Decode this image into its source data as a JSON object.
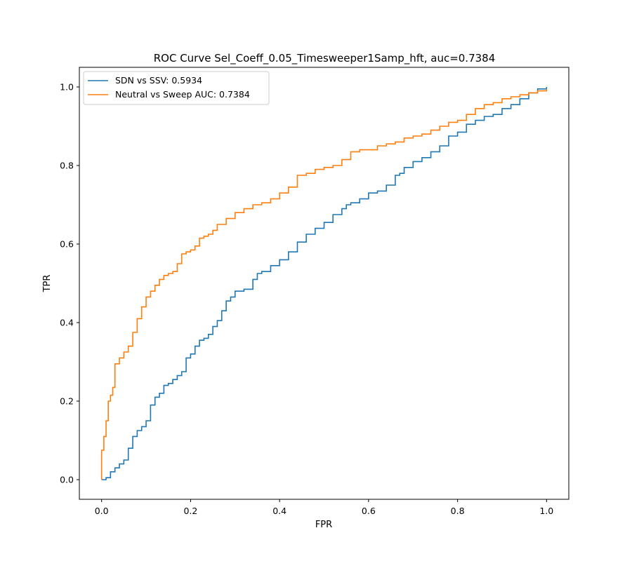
{
  "chart_data": {
    "type": "line",
    "title": "ROC Curve Sel_Coeff_0.05_Timesweeper1Samp_hft, auc=0.7384",
    "xlabel": "FPR",
    "ylabel": "TPR",
    "xlim": [
      -0.05,
      1.05
    ],
    "ylim": [
      -0.05,
      1.05
    ],
    "xticks": [
      0.0,
      0.2,
      0.4,
      0.6,
      0.8,
      1.0
    ],
    "yticks": [
      0.0,
      0.2,
      0.4,
      0.6,
      0.8,
      1.0
    ],
    "xtick_labels": [
      "0.0",
      "0.2",
      "0.4",
      "0.6",
      "0.8",
      "1.0"
    ],
    "ytick_labels": [
      "0.0",
      "0.2",
      "0.4",
      "0.6",
      "0.8",
      "1.0"
    ],
    "grid": false,
    "legend_position": "top-left",
    "series": [
      {
        "name": "SDN vs SSV: 0.5934",
        "color": "#1f77b4",
        "x": [
          0.0,
          0.01,
          0.02,
          0.03,
          0.04,
          0.05,
          0.06,
          0.07,
          0.08,
          0.09,
          0.1,
          0.11,
          0.12,
          0.13,
          0.14,
          0.15,
          0.16,
          0.17,
          0.18,
          0.19,
          0.2,
          0.21,
          0.22,
          0.23,
          0.24,
          0.25,
          0.26,
          0.27,
          0.28,
          0.29,
          0.3,
          0.32,
          0.34,
          0.35,
          0.36,
          0.38,
          0.4,
          0.42,
          0.44,
          0.46,
          0.48,
          0.5,
          0.52,
          0.54,
          0.55,
          0.56,
          0.58,
          0.6,
          0.62,
          0.64,
          0.66,
          0.67,
          0.68,
          0.7,
          0.72,
          0.74,
          0.76,
          0.78,
          0.8,
          0.82,
          0.84,
          0.86,
          0.88,
          0.9,
          0.92,
          0.94,
          0.96,
          0.98,
          1.0
        ],
        "y": [
          0.0,
          0.005,
          0.02,
          0.03,
          0.04,
          0.05,
          0.08,
          0.11,
          0.125,
          0.135,
          0.15,
          0.19,
          0.21,
          0.22,
          0.24,
          0.245,
          0.255,
          0.265,
          0.275,
          0.31,
          0.32,
          0.34,
          0.355,
          0.36,
          0.37,
          0.39,
          0.405,
          0.43,
          0.455,
          0.465,
          0.48,
          0.485,
          0.51,
          0.525,
          0.53,
          0.545,
          0.56,
          0.58,
          0.605,
          0.625,
          0.64,
          0.655,
          0.675,
          0.69,
          0.7,
          0.705,
          0.715,
          0.73,
          0.735,
          0.75,
          0.775,
          0.78,
          0.795,
          0.81,
          0.82,
          0.835,
          0.85,
          0.875,
          0.885,
          0.905,
          0.915,
          0.925,
          0.93,
          0.945,
          0.955,
          0.97,
          0.985,
          0.995,
          1.0
        ]
      },
      {
        "name": "Neutral vs Sweep AUC: 0.7384",
        "color": "#ff7f0e",
        "x": [
          0.0,
          0.0,
          0.005,
          0.01,
          0.015,
          0.02,
          0.025,
          0.03,
          0.04,
          0.05,
          0.06,
          0.07,
          0.08,
          0.09,
          0.1,
          0.11,
          0.12,
          0.13,
          0.14,
          0.15,
          0.16,
          0.17,
          0.18,
          0.19,
          0.2,
          0.21,
          0.22,
          0.23,
          0.24,
          0.25,
          0.26,
          0.28,
          0.3,
          0.32,
          0.34,
          0.36,
          0.38,
          0.4,
          0.42,
          0.44,
          0.46,
          0.48,
          0.5,
          0.52,
          0.54,
          0.56,
          0.58,
          0.6,
          0.62,
          0.64,
          0.66,
          0.68,
          0.7,
          0.72,
          0.74,
          0.76,
          0.78,
          0.8,
          0.82,
          0.84,
          0.86,
          0.88,
          0.9,
          0.92,
          0.94,
          0.96,
          0.98,
          1.0
        ],
        "y": [
          0.0,
          0.075,
          0.11,
          0.15,
          0.2,
          0.215,
          0.235,
          0.295,
          0.31,
          0.325,
          0.34,
          0.375,
          0.41,
          0.44,
          0.465,
          0.48,
          0.495,
          0.51,
          0.52,
          0.525,
          0.53,
          0.55,
          0.575,
          0.58,
          0.585,
          0.595,
          0.615,
          0.62,
          0.625,
          0.635,
          0.65,
          0.665,
          0.68,
          0.69,
          0.7,
          0.705,
          0.715,
          0.73,
          0.745,
          0.775,
          0.78,
          0.79,
          0.795,
          0.8,
          0.815,
          0.835,
          0.84,
          0.84,
          0.85,
          0.855,
          0.86,
          0.87,
          0.875,
          0.88,
          0.89,
          0.9,
          0.91,
          0.915,
          0.93,
          0.945,
          0.955,
          0.96,
          0.97,
          0.975,
          0.98,
          0.985,
          0.99,
          0.995
        ]
      }
    ]
  }
}
